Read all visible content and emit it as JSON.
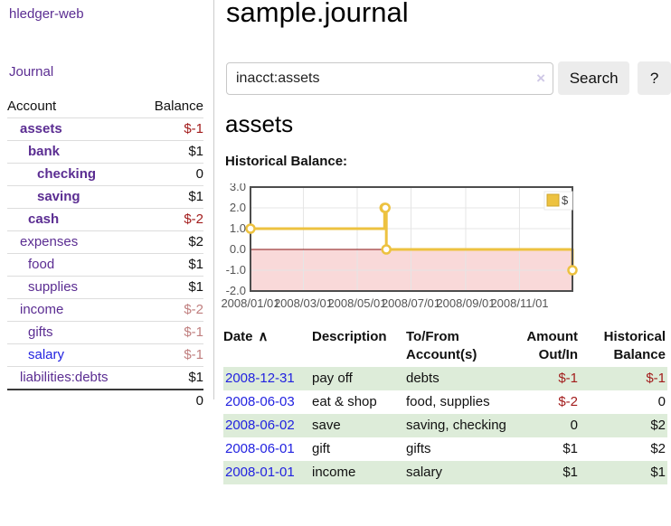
{
  "app": {
    "title": "hledger-web"
  },
  "nav": {
    "journal": "Journal"
  },
  "sidebar": {
    "col_account": "Account",
    "col_balance": "Balance",
    "accounts": [
      {
        "name": "assets",
        "depth": 1,
        "balance": "$-1"
      },
      {
        "name": "bank",
        "depth": 2,
        "balance": "$1"
      },
      {
        "name": "checking",
        "depth": 3,
        "balance": "0"
      },
      {
        "name": "saving",
        "depth": 3,
        "balance": "$1"
      },
      {
        "name": "cash",
        "depth": 2,
        "balance": "$-2"
      },
      {
        "name": "expenses",
        "depth": 1,
        "balance": "$2"
      },
      {
        "name": "food",
        "depth": 2,
        "balance": "$1"
      },
      {
        "name": "supplies",
        "depth": 2,
        "balance": "$1"
      },
      {
        "name": "income",
        "depth": 1,
        "balance": "$-2"
      },
      {
        "name": "gifts",
        "depth": 2,
        "balance": "$-1"
      },
      {
        "name": "salary",
        "depth": 2,
        "balance": "$-1"
      },
      {
        "name": "liabilities:debts",
        "depth": 1,
        "balance": "$1"
      }
    ],
    "total": "0"
  },
  "main": {
    "title": "sample.journal",
    "account_heading": "assets",
    "chart_label": "Historical Balance:"
  },
  "search": {
    "value": "inacct:assets",
    "clear_icon": "×",
    "button_label": "Search",
    "help_label": "?"
  },
  "chart_data": {
    "type": "line",
    "step": true,
    "series": [
      {
        "name": "$",
        "color": "#edc240",
        "points": [
          [
            "2008-01-01",
            1
          ],
          [
            "2008-06-01",
            2
          ],
          [
            "2008-06-02",
            2
          ],
          [
            "2008-06-03",
            0
          ],
          [
            "2008-12-31",
            -1
          ]
        ]
      }
    ],
    "ylim": [
      -2,
      3
    ],
    "yticks": [
      "3.0",
      "2.0",
      "1.0",
      "0.0",
      "-1.0",
      "-2.0"
    ],
    "xticks": [
      "2008/01/01",
      "2008/03/01",
      "2008/05/01",
      "2008/07/01",
      "2008/09/01",
      "2008/11/01"
    ],
    "xrange": [
      "2008-01-01",
      "2008-12-31"
    ],
    "legend": "$",
    "legend_position": "top-right",
    "grid": true,
    "negative_region_fill": "#f9d9d9",
    "zero_line_color": "#871111"
  },
  "register": {
    "headers": {
      "date": "Date",
      "sort_indicator": "∧",
      "description": "Description",
      "accounts": "To/From Account(s)",
      "amount": "Amount Out/In",
      "balance": "Historical Balance"
    },
    "rows": [
      {
        "date": "2008-12-31",
        "description": "pay off",
        "accounts": "debts",
        "amount": "$-1",
        "balance": "$-1"
      },
      {
        "date": "2008-06-03",
        "description": "eat & shop",
        "accounts": "food, supplies",
        "amount": "$-2",
        "balance": "0"
      },
      {
        "date": "2008-06-02",
        "description": "save",
        "accounts": "saving, checking",
        "amount": "0",
        "balance": "$2"
      },
      {
        "date": "2008-06-01",
        "description": "gift",
        "accounts": "gifts",
        "amount": "$1",
        "balance": "$2"
      },
      {
        "date": "2008-01-01",
        "description": "income",
        "accounts": "salary",
        "amount": "$1",
        "balance": "$1"
      }
    ]
  }
}
